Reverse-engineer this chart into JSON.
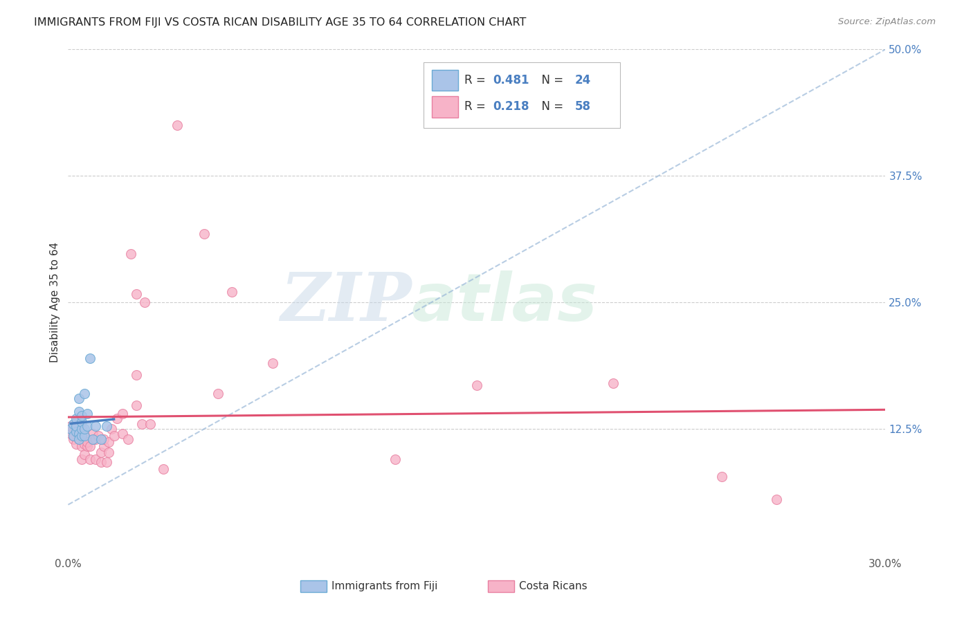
{
  "title": "IMMIGRANTS FROM FIJI VS COSTA RICAN DISABILITY AGE 35 TO 64 CORRELATION CHART",
  "source": "Source: ZipAtlas.com",
  "ylabel": "Disability Age 35 to 64",
  "xlim": [
    0.0,
    0.3
  ],
  "ylim": [
    0.0,
    0.5
  ],
  "xticks": [
    0.0,
    0.05,
    0.1,
    0.15,
    0.2,
    0.25,
    0.3
  ],
  "xtick_labels": [
    "0.0%",
    "",
    "",
    "",
    "",
    "",
    "30.0%"
  ],
  "yticks": [
    0.0,
    0.125,
    0.25,
    0.375,
    0.5
  ],
  "ytick_labels": [
    "",
    "12.5%",
    "25.0%",
    "37.5%",
    "50.0%"
  ],
  "fiji_R": 0.481,
  "fiji_N": 24,
  "cr_R": 0.218,
  "cr_N": 58,
  "fiji_color": "#aac4e8",
  "cr_color": "#f7b3c8",
  "fiji_dot_edge": "#6aaad4",
  "cr_dot_edge": "#e87fa0",
  "fiji_line_color": "#4a7fc1",
  "cr_line_color": "#e05070",
  "dashed_line_color": "#9ab8d8",
  "fiji_x": [
    0.001,
    0.002,
    0.002,
    0.003,
    0.003,
    0.003,
    0.004,
    0.004,
    0.004,
    0.004,
    0.005,
    0.005,
    0.005,
    0.005,
    0.006,
    0.006,
    0.006,
    0.007,
    0.007,
    0.008,
    0.009,
    0.01,
    0.012,
    0.014
  ],
  "fiji_y": [
    0.125,
    0.13,
    0.118,
    0.122,
    0.128,
    0.135,
    0.12,
    0.142,
    0.115,
    0.155,
    0.118,
    0.125,
    0.132,
    0.138,
    0.118,
    0.125,
    0.16,
    0.128,
    0.14,
    0.195,
    0.115,
    0.128,
    0.115,
    0.128
  ],
  "cr_x": [
    0.001,
    0.001,
    0.002,
    0.002,
    0.002,
    0.003,
    0.003,
    0.003,
    0.004,
    0.004,
    0.004,
    0.005,
    0.005,
    0.005,
    0.005,
    0.006,
    0.006,
    0.006,
    0.007,
    0.007,
    0.008,
    0.008,
    0.009,
    0.009,
    0.01,
    0.01,
    0.011,
    0.012,
    0.012,
    0.013,
    0.013,
    0.014,
    0.015,
    0.015,
    0.016,
    0.017,
    0.018,
    0.02,
    0.02,
    0.022,
    0.023,
    0.025,
    0.025,
    0.025,
    0.027,
    0.028,
    0.03,
    0.035,
    0.04,
    0.05,
    0.055,
    0.06,
    0.075,
    0.12,
    0.15,
    0.2,
    0.24,
    0.26
  ],
  "cr_y": [
    0.12,
    0.128,
    0.115,
    0.118,
    0.125,
    0.11,
    0.125,
    0.132,
    0.115,
    0.12,
    0.128,
    0.095,
    0.108,
    0.118,
    0.122,
    0.1,
    0.11,
    0.118,
    0.108,
    0.112,
    0.095,
    0.108,
    0.115,
    0.12,
    0.095,
    0.115,
    0.118,
    0.092,
    0.102,
    0.108,
    0.115,
    0.092,
    0.102,
    0.112,
    0.125,
    0.118,
    0.135,
    0.14,
    0.12,
    0.115,
    0.298,
    0.148,
    0.178,
    0.258,
    0.13,
    0.25,
    0.13,
    0.085,
    0.425,
    0.318,
    0.16,
    0.26,
    0.19,
    0.095,
    0.168,
    0.17,
    0.078,
    0.055
  ],
  "legend_fiji_label": "Immigrants from Fiji",
  "legend_cr_label": "Costa Ricans",
  "watermark_zip": "ZIP",
  "watermark_atlas": "atlas",
  "background_color": "#ffffff",
  "grid_color": "#cccccc",
  "legend_value_color": "#4a7fc1",
  "legend_label_color": "#333333"
}
